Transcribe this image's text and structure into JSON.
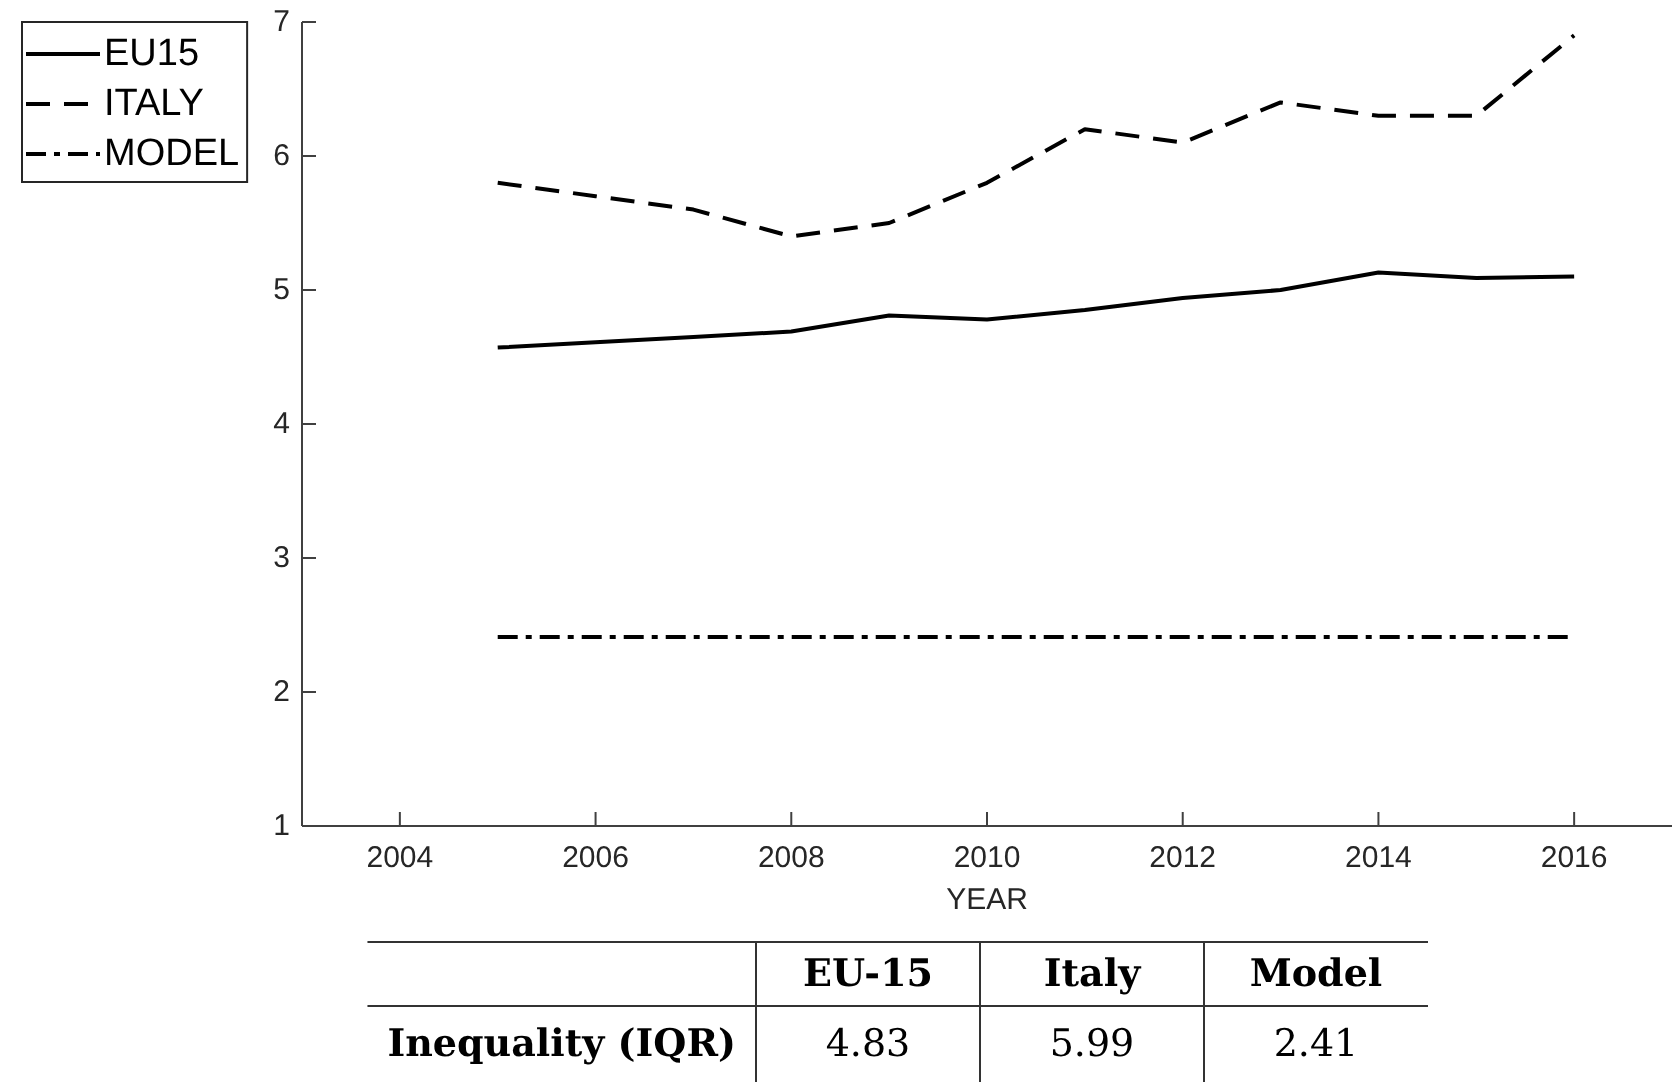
{
  "chart_data": [
    {
      "type": "line",
      "xlabel": "YEAR",
      "x": [
        2005,
        2006,
        2007,
        2008,
        2009,
        2010,
        2011,
        2012,
        2013,
        2014,
        2015,
        2016
      ],
      "series": [
        {
          "name": "EU15",
          "color": "#000000",
          "line_style": "solid",
          "values": [
            4.57,
            4.61,
            4.65,
            4.69,
            4.81,
            4.78,
            4.85,
            4.94,
            5.0,
            5.13,
            5.09,
            5.1
          ]
        },
        {
          "name": "ITALY",
          "color": "#000000",
          "line_style": "dashed",
          "values": [
            5.8,
            5.7,
            5.6,
            5.4,
            5.5,
            5.8,
            6.2,
            6.1,
            6.4,
            6.3,
            6.3,
            6.9
          ]
        },
        {
          "name": "MODEL",
          "color": "#000000",
          "line_style": "dashdot",
          "values": [
            2.41,
            2.41,
            2.41,
            2.41,
            2.41,
            2.41,
            2.41,
            2.41,
            2.41,
            2.41,
            2.41,
            2.41
          ]
        }
      ],
      "xlim": [
        2003,
        2017
      ],
      "xticks": [
        2004,
        2006,
        2008,
        2010,
        2012,
        2014,
        2016
      ],
      "ylim": [
        1,
        7
      ],
      "yticks": [
        1,
        2,
        3,
        4,
        5,
        6,
        7
      ],
      "legend": "top left"
    },
    {
      "type": "other",
      "categories": [
        "EU-15",
        "Italy",
        "Model"
      ],
      "y_categories": [
        "Inequality (IQR)"
      ],
      "values": [
        4.83,
        5.99,
        2.41
      ],
      "data_labels": true
    }
  ]
}
